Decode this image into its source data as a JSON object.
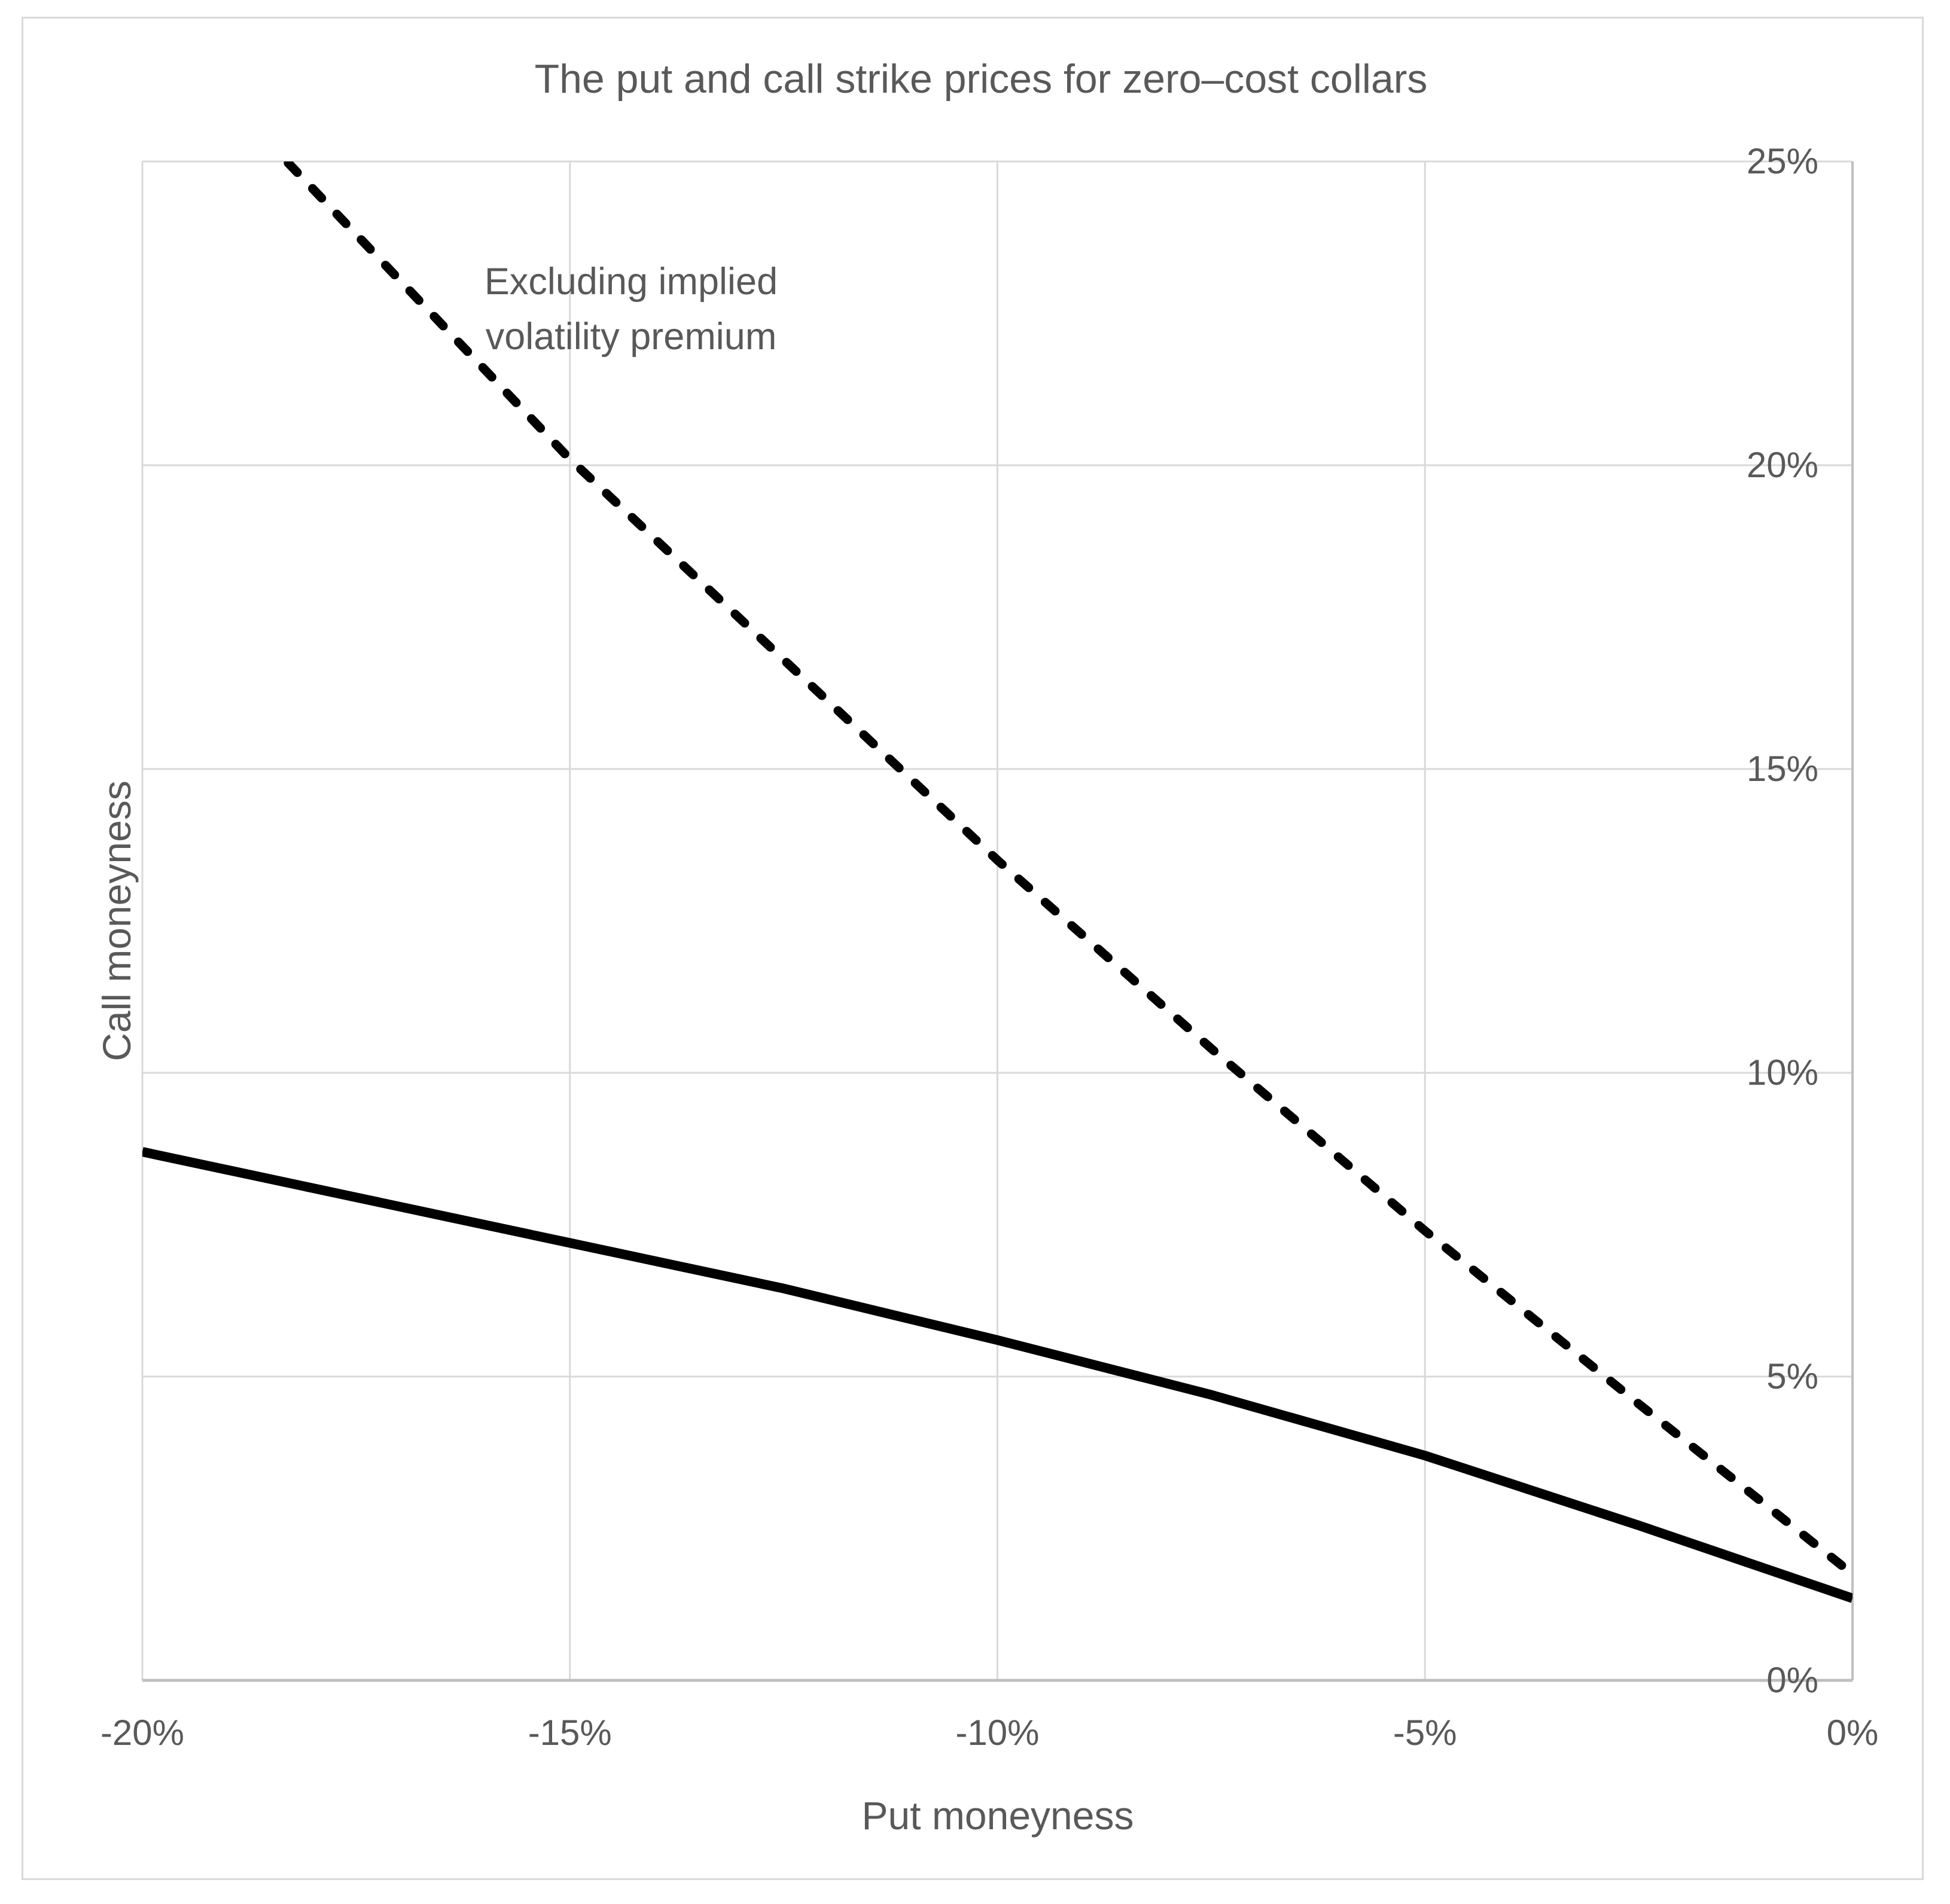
{
  "chart_data": {
    "type": "line",
    "title": "The put and call strike prices for zero–cost collars",
    "xlabel": "Put moneyness",
    "ylabel": "Call moneyness",
    "xlim": [
      -20,
      0
    ],
    "ylim": [
      0,
      25
    ],
    "grid": true,
    "legend_position": "none",
    "x_tick_values": [
      -20,
      -15,
      -10,
      -5,
      0
    ],
    "x_tick_labels": [
      "-20%",
      "-15%",
      "-10%",
      "-5%",
      "0%"
    ],
    "y_tick_values": [
      0,
      5,
      10,
      15,
      20,
      25
    ],
    "y_tick_labels": [
      "0%",
      "5%",
      "10%",
      "15%",
      "20%",
      "25%"
    ],
    "annotation_lines": [
      "Excluding implied",
      "volatility premium"
    ],
    "series": [
      {
        "id": "excluding-implied-volatility-premium",
        "label": "Excluding implied volatility premium",
        "style": "dashed",
        "color": "#000000",
        "clipped_to_ylim": true,
        "points": [
          [
            -20,
            27.5
          ],
          [
            -17.5,
            23.8
          ],
          [
            -15,
            20.1
          ],
          [
            -12.5,
            16.8
          ],
          [
            -10,
            13.5
          ],
          [
            -7.5,
            10.4
          ],
          [
            -5,
            7.4
          ],
          [
            -2.5,
            4.55
          ],
          [
            0,
            1.75
          ]
        ]
      },
      {
        "id": "collar-call-strike-solid",
        "label": "",
        "style": "solid",
        "color": "#000000",
        "clipped_to_ylim": false,
        "points": [
          [
            -20,
            8.7
          ],
          [
            -17.5,
            7.95
          ],
          [
            -15,
            7.2
          ],
          [
            -12.5,
            6.45
          ],
          [
            -10,
            5.6
          ],
          [
            -7.5,
            4.7
          ],
          [
            -5,
            3.7
          ],
          [
            -2.5,
            2.55
          ],
          [
            0,
            1.35
          ]
        ]
      }
    ],
    "colors": {
      "text": "#595959",
      "gridline": "#D9D9D9",
      "axis_line": "#BFBFBF",
      "series": "#000000",
      "frame": "#D9D9D9",
      "background": "#FFFFFF"
    }
  }
}
